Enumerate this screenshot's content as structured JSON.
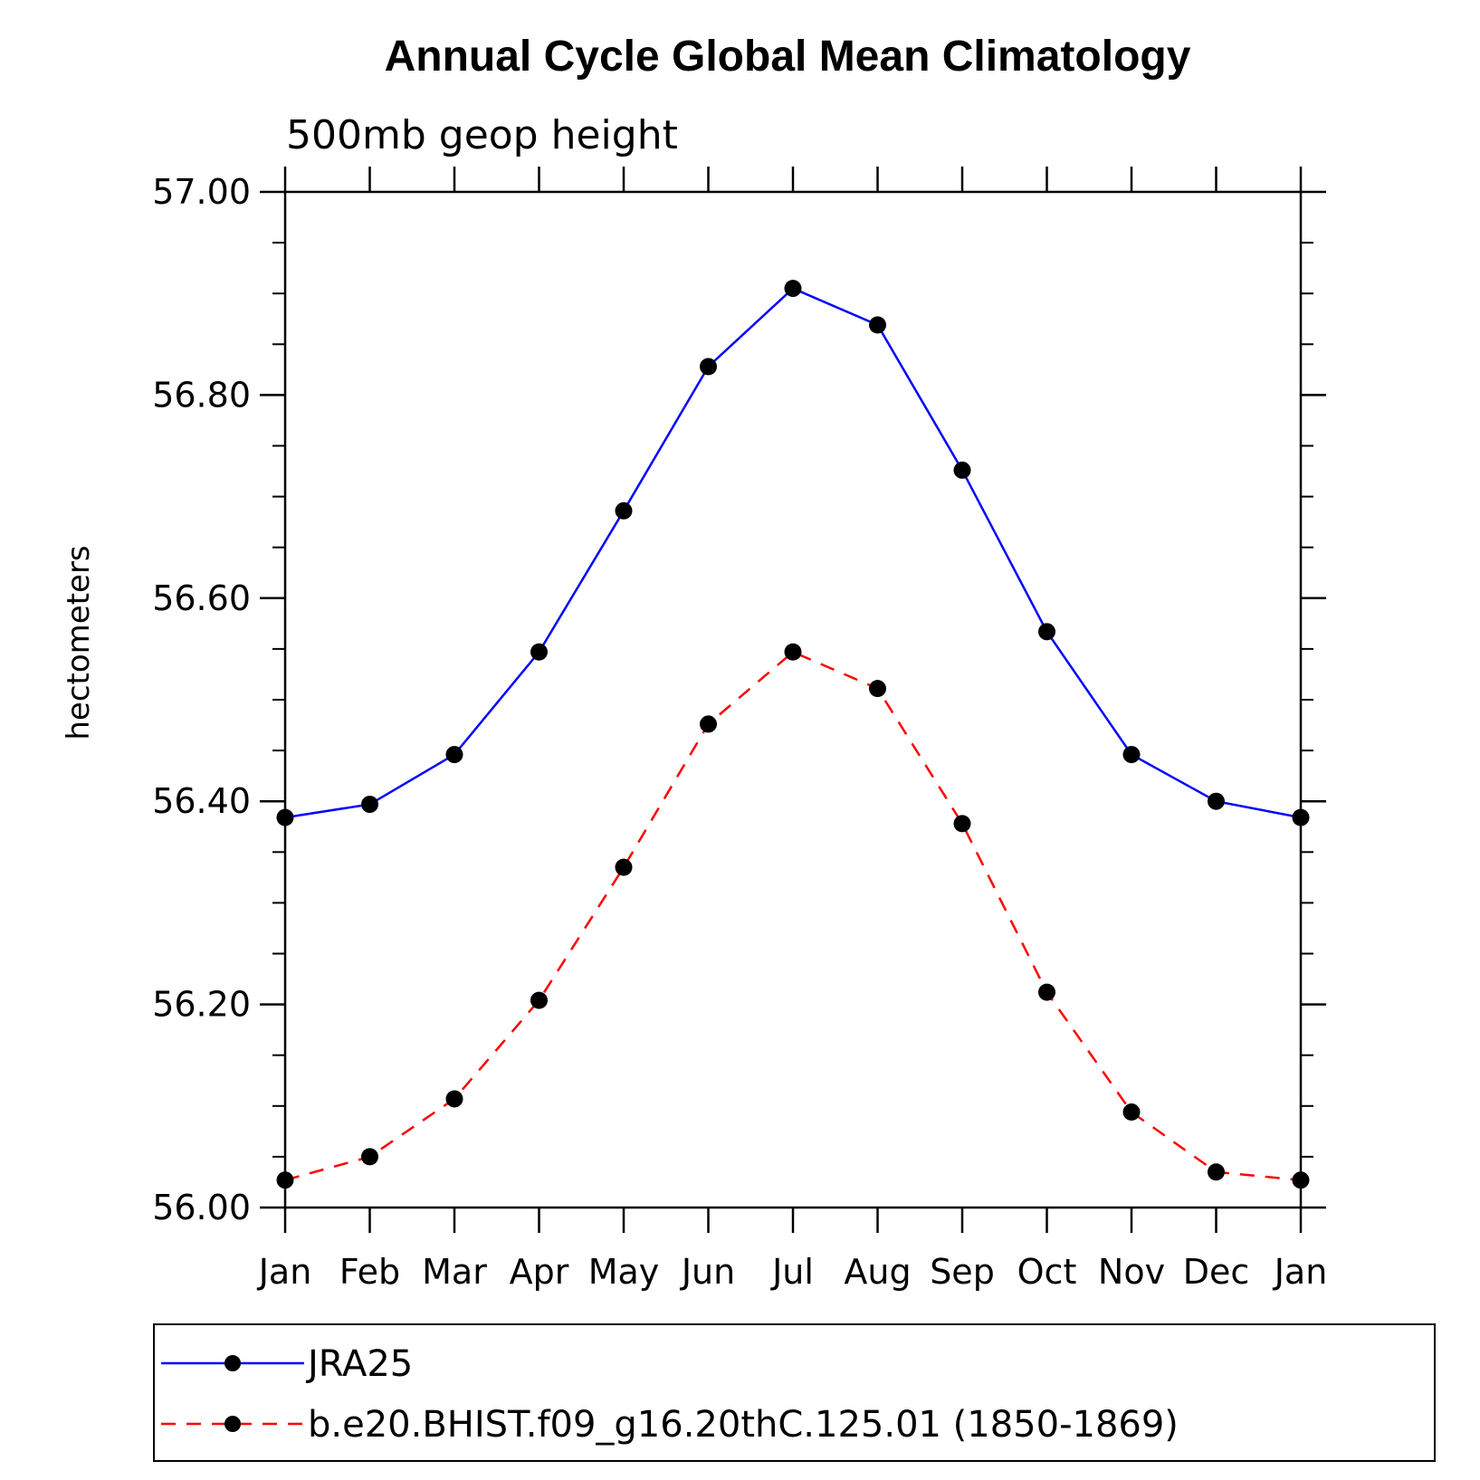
{
  "chart_data": {
    "type": "line",
    "title": "Annual Cycle Global Mean Climatology",
    "subtitle": "500mb geop height",
    "xlabel": "",
    "ylabel": "hectometers",
    "categories": [
      "Jan",
      "Feb",
      "Mar",
      "Apr",
      "May",
      "Jun",
      "Jul",
      "Aug",
      "Sep",
      "Oct",
      "Nov",
      "Dec",
      "Jan"
    ],
    "ylim": [
      56.0,
      57.0
    ],
    "yticks": [
      56.0,
      56.2,
      56.4,
      56.6,
      56.8,
      57.0
    ],
    "ytick_labels": [
      "56.00",
      "56.20",
      "56.40",
      "56.60",
      "56.80",
      "57.00"
    ],
    "grid": false,
    "legend_position": "bottom",
    "series": [
      {
        "name": "JRA25",
        "color": "#0000ff",
        "line_style": "solid",
        "marker": "filled-circle",
        "values": [
          56.384,
          56.397,
          56.446,
          56.547,
          56.686,
          56.828,
          56.905,
          56.869,
          56.726,
          56.567,
          56.446,
          56.4,
          56.384
        ]
      },
      {
        "name": "b.e20.BHIST.f09_g16.20thC.125.01 (1850-1869)",
        "color": "#ff0000",
        "line_style": "dashed",
        "marker": "filled-circle",
        "values": [
          56.027,
          56.05,
          56.107,
          56.204,
          56.335,
          56.476,
          56.547,
          56.511,
          56.378,
          56.212,
          56.094,
          56.035,
          56.027
        ]
      }
    ]
  }
}
